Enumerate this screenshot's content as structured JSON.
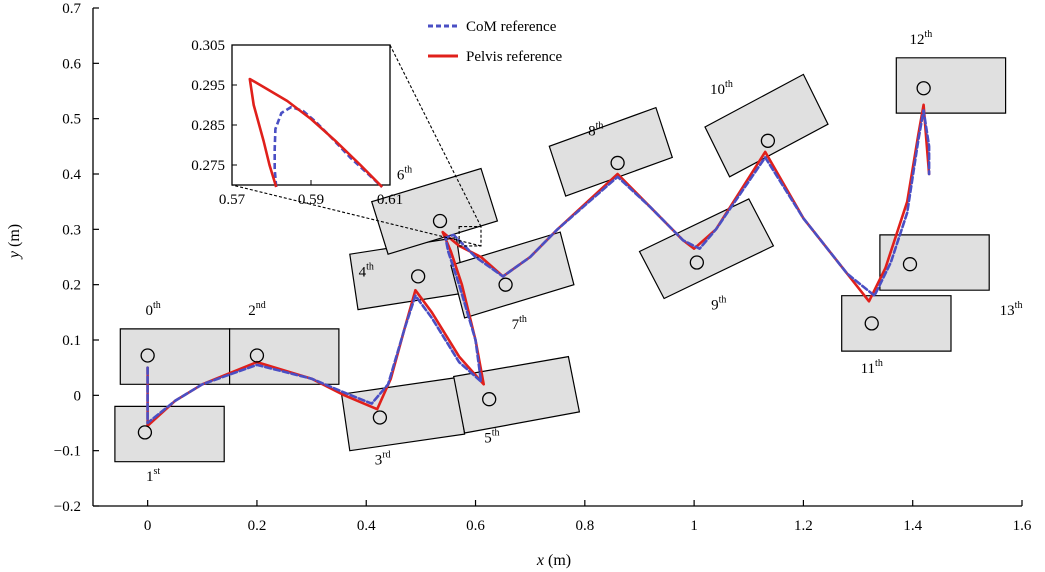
{
  "chart_data": {
    "type": "line",
    "xlabel": "x (m)",
    "ylabel": "y (m)",
    "xlim": [
      -0.1,
      1.6
    ],
    "ylim": [
      -0.2,
      0.7
    ],
    "xticks": [
      "0",
      "0.2",
      "0.4",
      "0.6",
      "0.8",
      "1",
      "1.2",
      "1.4",
      "1.6"
    ],
    "yticks": [
      "−0.2",
      "−0.1",
      "0",
      "0.1",
      "0.2",
      "0.3",
      "0.4",
      "0.5",
      "0.6",
      "0.7"
    ],
    "legend": {
      "position": "top-center"
    },
    "series": [
      {
        "name": "CoM reference",
        "style": "dashed",
        "color": "#4a4fc4",
        "points": [
          [
            0,
            0.05
          ],
          [
            0,
            -0.05
          ],
          [
            0.05,
            -0.01
          ],
          [
            0.1,
            0.02
          ],
          [
            0.2,
            0.055
          ],
          [
            0.3,
            0.03
          ],
          [
            0.36,
            0.005
          ],
          [
            0.41,
            -0.015
          ],
          [
            0.44,
            0.02
          ],
          [
            0.47,
            0.12
          ],
          [
            0.49,
            0.18
          ],
          [
            0.52,
            0.14
          ],
          [
            0.57,
            0.06
          ],
          [
            0.61,
            0.025
          ],
          [
            0.6,
            0.1
          ],
          [
            0.57,
            0.2
          ],
          [
            0.55,
            0.26
          ],
          [
            0.545,
            0.285
          ],
          [
            0.56,
            0.29
          ],
          [
            0.6,
            0.25
          ],
          [
            0.65,
            0.215
          ],
          [
            0.7,
            0.25
          ],
          [
            0.75,
            0.3
          ],
          [
            0.86,
            0.395
          ],
          [
            0.92,
            0.34
          ],
          [
            0.98,
            0.28
          ],
          [
            1.01,
            0.265
          ],
          [
            1.04,
            0.3
          ],
          [
            1.13,
            0.43
          ],
          [
            1.2,
            0.32
          ],
          [
            1.28,
            0.22
          ],
          [
            1.33,
            0.18
          ],
          [
            1.36,
            0.24
          ],
          [
            1.39,
            0.33
          ],
          [
            1.41,
            0.46
          ],
          [
            1.42,
            0.515
          ],
          [
            1.43,
            0.45
          ],
          [
            1.43,
            0.4
          ]
        ]
      },
      {
        "name": "Pelvis reference",
        "style": "solid",
        "color": "#e0201b",
        "points": [
          [
            0,
            0.05
          ],
          [
            0,
            -0.055
          ],
          [
            0.05,
            -0.01
          ],
          [
            0.1,
            0.02
          ],
          [
            0.2,
            0.06
          ],
          [
            0.3,
            0.03
          ],
          [
            0.36,
            0.0
          ],
          [
            0.42,
            -0.025
          ],
          [
            0.445,
            0.03
          ],
          [
            0.47,
            0.12
          ],
          [
            0.49,
            0.19
          ],
          [
            0.52,
            0.15
          ],
          [
            0.57,
            0.07
          ],
          [
            0.615,
            0.02
          ],
          [
            0.6,
            0.1
          ],
          [
            0.575,
            0.2
          ],
          [
            0.555,
            0.26
          ],
          [
            0.54,
            0.295
          ],
          [
            0.57,
            0.27
          ],
          [
            0.61,
            0.25
          ],
          [
            0.65,
            0.215
          ],
          [
            0.7,
            0.25
          ],
          [
            0.75,
            0.3
          ],
          [
            0.86,
            0.4
          ],
          [
            0.92,
            0.34
          ],
          [
            0.98,
            0.28
          ],
          [
            1.0,
            0.265
          ],
          [
            1.04,
            0.3
          ],
          [
            1.13,
            0.44
          ],
          [
            1.2,
            0.32
          ],
          [
            1.28,
            0.22
          ],
          [
            1.32,
            0.17
          ],
          [
            1.35,
            0.23
          ],
          [
            1.39,
            0.35
          ],
          [
            1.41,
            0.47
          ],
          [
            1.42,
            0.525
          ],
          [
            1.425,
            0.46
          ],
          [
            1.43,
            0.4
          ]
        ]
      }
    ],
    "footprints": [
      {
        "label": "0",
        "suffix": "th",
        "corners": [
          [
            -0.05,
            0.02
          ],
          [
            0.15,
            0.02
          ],
          [
            0.15,
            0.12
          ],
          [
            -0.05,
            0.12
          ]
        ],
        "center": [
          0,
          0.072
        ],
        "label_at": [
          0.01,
          0.145
        ]
      },
      {
        "label": "1",
        "suffix": "st",
        "corners": [
          [
            -0.06,
            -0.12
          ],
          [
            0.14,
            -0.12
          ],
          [
            0.14,
            -0.02
          ],
          [
            -0.06,
            -0.02
          ]
        ],
        "center": [
          -0.005,
          -0.067
        ],
        "label_at": [
          0.01,
          -0.155
        ]
      },
      {
        "label": "2",
        "suffix": "nd",
        "corners": [
          [
            0.15,
            0.02
          ],
          [
            0.35,
            0.02
          ],
          [
            0.35,
            0.12
          ],
          [
            0.15,
            0.12
          ]
        ],
        "center": [
          0.2,
          0.072
        ],
        "label_at": [
          0.2,
          0.145
        ]
      },
      {
        "label": "3",
        "suffix": "rd",
        "corners": [
          [
            0.37,
            -0.1
          ],
          [
            0.58,
            -0.07
          ],
          [
            0.565,
            0.032
          ],
          [
            0.355,
            0.002
          ]
        ],
        "center": [
          0.425,
          -0.04
        ],
        "label_at": [
          0.43,
          -0.125
        ]
      },
      {
        "label": "5",
        "suffix": "th",
        "corners": [
          [
            0.58,
            -0.068
          ],
          [
            0.79,
            -0.03
          ],
          [
            0.77,
            0.07
          ],
          [
            0.56,
            0.034
          ]
        ],
        "center": [
          0.625,
          -0.007
        ],
        "label_at": [
          0.63,
          -0.085
        ]
      },
      {
        "label": "4",
        "suffix": "th",
        "corners": [
          [
            0.385,
            0.155
          ],
          [
            0.58,
            0.185
          ],
          [
            0.565,
            0.285
          ],
          [
            0.37,
            0.255
          ]
        ],
        "center": [
          0.495,
          0.215
        ],
        "label_at": [
          0.4,
          0.215
        ]
      },
      {
        "label": "6",
        "suffix": "th",
        "corners": [
          [
            0.44,
            0.255
          ],
          [
            0.64,
            0.315
          ],
          [
            0.61,
            0.41
          ],
          [
            0.41,
            0.35
          ]
        ],
        "center": [
          0.535,
          0.315
        ],
        "label_at": [
          0.47,
          0.39
        ]
      },
      {
        "label": "7",
        "suffix": "th",
        "corners": [
          [
            0.58,
            0.14
          ],
          [
            0.78,
            0.2
          ],
          [
            0.755,
            0.295
          ],
          [
            0.555,
            0.235
          ]
        ],
        "center": [
          0.655,
          0.2
        ],
        "label_at": [
          0.68,
          0.12
        ]
      },
      {
        "label": "8",
        "suffix": "th",
        "corners": [
          [
            0.765,
            0.36
          ],
          [
            0.96,
            0.43
          ],
          [
            0.93,
            0.52
          ],
          [
            0.735,
            0.45
          ]
        ],
        "center": [
          0.86,
          0.42
        ],
        "label_at": [
          0.82,
          0.47
        ]
      },
      {
        "label": "9",
        "suffix": "th",
        "corners": [
          [
            0.945,
            0.175
          ],
          [
            1.145,
            0.27
          ],
          [
            1.1,
            0.355
          ],
          [
            0.9,
            0.26
          ]
        ],
        "center": [
          1.005,
          0.24
        ],
        "label_at": [
          1.045,
          0.155
        ]
      },
      {
        "label": "10",
        "suffix": "th",
        "corners": [
          [
            1.065,
            0.395
          ],
          [
            1.245,
            0.49
          ],
          [
            1.2,
            0.58
          ],
          [
            1.02,
            0.485
          ]
        ],
        "center": [
          1.135,
          0.46
        ],
        "label_at": [
          1.05,
          0.545
        ]
      },
      {
        "label": "11",
        "suffix": "th",
        "corners": [
          [
            1.27,
            0.08
          ],
          [
            1.47,
            0.08
          ],
          [
            1.47,
            0.18
          ],
          [
            1.27,
            0.18
          ]
        ],
        "center": [
          1.325,
          0.13
        ],
        "label_at": [
          1.325,
          0.04
        ]
      },
      {
        "label": "12",
        "suffix": "th",
        "corners": [
          [
            1.37,
            0.51
          ],
          [
            1.57,
            0.51
          ],
          [
            1.57,
            0.61
          ],
          [
            1.37,
            0.61
          ]
        ],
        "center": [
          1.42,
          0.555
        ],
        "label_at": [
          1.415,
          0.635
        ]
      },
      {
        "label": "13",
        "suffix": "th",
        "corners": [
          [
            1.34,
            0.19
          ],
          [
            1.54,
            0.19
          ],
          [
            1.54,
            0.29
          ],
          [
            1.34,
            0.29
          ]
        ],
        "center": [
          1.395,
          0.237
        ],
        "label_at": [
          1.58,
          0.145
        ]
      }
    ],
    "zoom_region": {
      "xlim": [
        0.57,
        0.61
      ],
      "ylim": [
        0.27,
        0.305
      ]
    },
    "inset": {
      "xlim": [
        0.57,
        0.61
      ],
      "ylim": [
        0.27,
        0.305
      ],
      "xticks": [
        "0.57",
        "0.59",
        "0.61"
      ],
      "yticks": [
        "0.305",
        "0.295",
        "0.285",
        "0.275"
      ],
      "series": [
        {
          "name": "CoM reference",
          "style": "dashed",
          "color": "#4a4fc4",
          "points": [
            [
              0.5812,
              0.2695
            ],
            [
              0.5808,
              0.274
            ],
            [
              0.5808,
              0.279
            ],
            [
              0.581,
              0.284
            ],
            [
              0.5825,
              0.288
            ],
            [
              0.585,
              0.2895
            ],
            [
              0.588,
              0.2885
            ],
            [
              0.591,
              0.286
            ],
            [
              0.595,
              0.282
            ],
            [
              0.6,
              0.2768
            ],
            [
              0.6045,
              0.2727
            ],
            [
              0.608,
              0.2695
            ]
          ]
        },
        {
          "name": "Pelvis reference",
          "style": "solid",
          "color": "#e0201b",
          "points": [
            [
              0.5812,
              0.2695
            ],
            [
              0.5795,
              0.275
            ],
            [
              0.578,
              0.281
            ],
            [
              0.5755,
              0.29
            ],
            [
              0.5745,
              0.2965
            ],
            [
              0.578,
              0.2945
            ],
            [
              0.584,
              0.291
            ],
            [
              0.59,
              0.2865
            ],
            [
              0.596,
              0.2812
            ],
            [
              0.6025,
              0.275
            ],
            [
              0.608,
              0.2695
            ]
          ]
        }
      ]
    },
    "colors": {
      "footprint_fill": "#e0e0e0",
      "com": "#4a4fc4",
      "pelvis": "#e0201b"
    }
  }
}
